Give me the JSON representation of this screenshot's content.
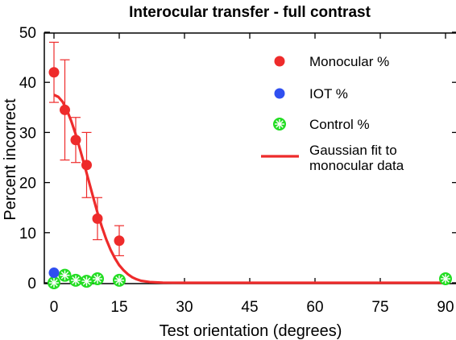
{
  "chart_data": {
    "type": "scatter",
    "title": "Interocular transfer - full contrast",
    "xlabel": "Test orientation (degrees)",
    "ylabel": "Percent incorrect",
    "xlim": [
      0,
      90
    ],
    "ylim": [
      0,
      50
    ],
    "xticks": [
      0,
      15,
      30,
      45,
      60,
      75,
      90
    ],
    "yticks": [
      0,
      10,
      20,
      30,
      40,
      50
    ],
    "grid": false,
    "legend_position": "top-right",
    "series": [
      {
        "name": "Monocular %",
        "kind": "points",
        "marker": "filled-circle",
        "color": "#ee2b2b",
        "points": [
          {
            "x": 0,
            "y": 42.0,
            "err": 6.0
          },
          {
            "x": 2.5,
            "y": 34.5,
            "err": 10.0
          },
          {
            "x": 5,
            "y": 28.5,
            "err": 4.5
          },
          {
            "x": 7.5,
            "y": 23.5,
            "err": 6.5
          },
          {
            "x": 10,
            "y": 12.8,
            "err": 4.2
          },
          {
            "x": 15,
            "y": 8.4,
            "err": 3.0
          }
        ]
      },
      {
        "name": "IOT %",
        "kind": "points",
        "marker": "filled-circle",
        "color": "#2f4ff0",
        "points": [
          {
            "x": 0,
            "y": 2.0
          }
        ]
      },
      {
        "name": "Control %",
        "kind": "points",
        "marker": "starred-circle",
        "color": "#22dd22",
        "points": [
          {
            "x": 0,
            "y": 0.0
          },
          {
            "x": 2.5,
            "y": 1.5
          },
          {
            "x": 5,
            "y": 0.5
          },
          {
            "x": 7.5,
            "y": 0.3
          },
          {
            "x": 10,
            "y": 0.8
          },
          {
            "x": 15,
            "y": 0.5
          },
          {
            "x": 90,
            "y": 0.8
          }
        ]
      },
      {
        "name": "Gaussian fit to monocular data",
        "kind": "line",
        "color": "#ee2b2b",
        "points": [
          {
            "x": 0,
            "y": 37.5
          },
          {
            "x": 1,
            "y": 37.1
          },
          {
            "x": 2,
            "y": 36.1
          },
          {
            "x": 3,
            "y": 34.4
          },
          {
            "x": 4,
            "y": 32.2
          },
          {
            "x": 5,
            "y": 29.6
          },
          {
            "x": 6,
            "y": 26.6
          },
          {
            "x": 7,
            "y": 23.5
          },
          {
            "x": 8,
            "y": 20.3
          },
          {
            "x": 9,
            "y": 17.1
          },
          {
            "x": 10,
            "y": 14.0
          },
          {
            "x": 11,
            "y": 11.2
          },
          {
            "x": 12,
            "y": 8.7
          },
          {
            "x": 13,
            "y": 6.6
          },
          {
            "x": 14,
            "y": 4.9
          },
          {
            "x": 15,
            "y": 3.5
          },
          {
            "x": 16,
            "y": 2.5
          },
          {
            "x": 17,
            "y": 1.7
          },
          {
            "x": 18,
            "y": 1.1
          },
          {
            "x": 19,
            "y": 0.7
          },
          {
            "x": 20,
            "y": 0.4
          },
          {
            "x": 22,
            "y": 0.15
          },
          {
            "x": 25,
            "y": 0.03
          },
          {
            "x": 30,
            "y": 0.0
          },
          {
            "x": 90,
            "y": 0.0
          }
        ]
      }
    ],
    "legend": [
      {
        "label": "Monocular %",
        "series": 0
      },
      {
        "label": "IOT %",
        "series": 1
      },
      {
        "label": "Control %",
        "series": 2
      },
      {
        "label_lines": [
          "Gaussian fit to",
          "monocular data"
        ],
        "series": 3
      }
    ]
  }
}
